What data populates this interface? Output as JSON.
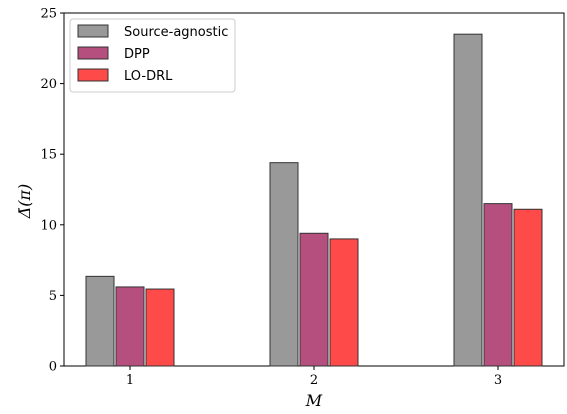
{
  "chart_data": {
    "type": "bar",
    "categories": [
      "1",
      "2",
      "3"
    ],
    "series": [
      {
        "name": "Source-agnostic",
        "values": [
          6.35,
          14.4,
          23.5
        ],
        "color": "#999999"
      },
      {
        "name": "DPP",
        "values": [
          5.6,
          9.4,
          11.5
        ],
        "color": "#b5507e"
      },
      {
        "name": "LO-DRL",
        "values": [
          5.45,
          9.0,
          11.1
        ],
        "color": "#ff4a4a"
      }
    ],
    "xlabel": "M",
    "ylabel": "Δ̄(π)",
    "ylim": [
      0,
      25
    ],
    "yticks": [
      0,
      5,
      10,
      15,
      20,
      25
    ],
    "grid": false,
    "legend_position": "top-left",
    "bar_edge_color": "#333333"
  }
}
